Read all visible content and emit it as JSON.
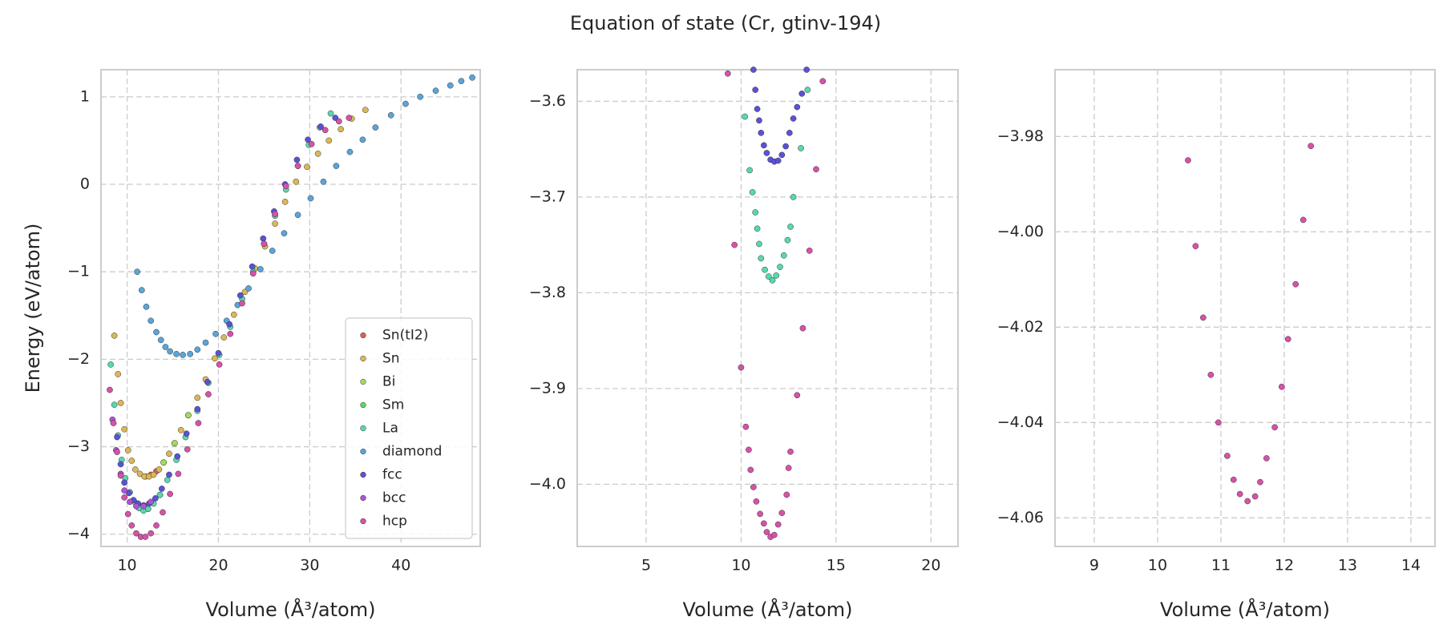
{
  "title": "Equation of state (Cr, gtinv-194)",
  "chart_data": [
    {
      "type": "scatter",
      "xlabel": "Volume (Å³/atom)",
      "ylabel": "Energy (eV/atom)",
      "xlim": [
        7.14,
        48.67
      ],
      "ylim": [
        -4.14,
        1.31
      ],
      "xticks": [
        10,
        20,
        30,
        40
      ],
      "yticks": [
        {
          "value": -4,
          "label": "−4"
        },
        {
          "value": -3,
          "label": "−3"
        },
        {
          "value": -2,
          "label": "−2"
        },
        {
          "value": -1,
          "label": "−1"
        },
        0,
        1
      ],
      "grid": true,
      "legend": "lower right",
      "series": [
        {
          "name": "Sn(tI2)",
          "color": "#db5f57",
          "x": [
            12.0,
            12.6,
            13.2
          ],
          "y": [
            -3.34,
            -3.32,
            -3.28
          ]
        },
        {
          "name": "Sn",
          "color": "#dbb757",
          "x": [
            8.6,
            9.0,
            9.3,
            9.7,
            10.1,
            10.5,
            10.9,
            11.4,
            11.9,
            12.4,
            12.9,
            13.5,
            14.0,
            14.6,
            15.2,
            15.9,
            16.7,
            17.7,
            18.6,
            19.6,
            20.6,
            21.7,
            22.9,
            24.0,
            25.1,
            26.2,
            27.3,
            28.5,
            29.7,
            30.9,
            32.1,
            33.4,
            34.6,
            36.1
          ],
          "y": [
            -1.73,
            -2.17,
            -2.5,
            -2.8,
            -3.04,
            -3.16,
            -3.26,
            -3.31,
            -3.34,
            -3.34,
            -3.32,
            -3.26,
            -3.18,
            -3.08,
            -2.96,
            -2.81,
            -2.64,
            -2.44,
            -2.23,
            -1.99,
            -1.75,
            -1.49,
            -1.23,
            -0.96,
            -0.71,
            -0.45,
            -0.2,
            0.03,
            0.2,
            0.35,
            0.5,
            0.63,
            0.75,
            0.85
          ]
        },
        {
          "name": "Bi",
          "color": "#a5db57",
          "x": [
            14.0,
            15.2,
            16.7
          ],
          "y": [
            -3.18,
            -2.96,
            -2.64
          ]
        },
        {
          "name": "Sm",
          "color": "#57db5f",
          "x": [
            11.3,
            12.3,
            13.6
          ],
          "y": [
            -3.7,
            -3.71,
            -3.55
          ]
        },
        {
          "name": "La",
          "color": "#57d8b0",
          "x": [
            8.2,
            8.6,
            9.0,
            9.4,
            9.8,
            10.3,
            10.8,
            11.3,
            11.8,
            12.3,
            12.9,
            13.6,
            14.4,
            15.4,
            16.4,
            17.7,
            18.9,
            20.1,
            21.3,
            22.6,
            23.8,
            25.0,
            26.2,
            27.4,
            28.7,
            29.9,
            31.1,
            32.3
          ],
          "y": [
            -2.06,
            -2.52,
            -2.87,
            -3.15,
            -3.36,
            -3.52,
            -3.63,
            -3.7,
            -3.73,
            -3.71,
            -3.65,
            -3.55,
            -3.38,
            -3.15,
            -2.89,
            -2.59,
            -2.27,
            -1.95,
            -1.63,
            -1.31,
            -1.0,
            -0.68,
            -0.36,
            -0.06,
            0.21,
            0.45,
            0.65,
            0.81
          ]
        },
        {
          "name": "diamond",
          "color": "#5aa5d8",
          "x": [
            11.1,
            11.6,
            12.1,
            12.6,
            13.2,
            13.7,
            14.2,
            14.7,
            15.4,
            16.1,
            16.9,
            17.7,
            18.6,
            19.7,
            20.9,
            22.1,
            23.3,
            24.6,
            25.9,
            27.2,
            28.7,
            30.1,
            31.5,
            32.9,
            34.4,
            35.8,
            37.2,
            38.9,
            40.5,
            42.1,
            43.8,
            45.4,
            46.6,
            47.8
          ],
          "y": [
            -1.0,
            -1.21,
            -1.4,
            -1.56,
            -1.69,
            -1.78,
            -1.86,
            -1.91,
            -1.94,
            -1.95,
            -1.94,
            -1.89,
            -1.81,
            -1.71,
            -1.56,
            -1.38,
            -1.19,
            -0.97,
            -0.76,
            -0.56,
            -0.35,
            -0.16,
            0.03,
            0.21,
            0.37,
            0.51,
            0.65,
            0.79,
            0.92,
            1.0,
            1.07,
            1.13,
            1.18,
            1.22
          ]
        },
        {
          "name": "fcc",
          "color": "#5a52d6",
          "x": [
            8.9,
            9.3,
            9.7,
            10.2,
            10.7,
            11.2,
            11.8,
            12.4,
            13.1,
            13.8,
            14.6,
            15.5,
            16.5,
            17.7,
            18.8,
            20.0,
            21.2,
            22.4,
            23.7,
            24.9,
            26.1,
            27.3,
            28.6,
            29.8,
            31.2,
            32.8
          ],
          "y": [
            -2.89,
            -3.2,
            -3.41,
            -3.53,
            -3.61,
            -3.65,
            -3.67,
            -3.65,
            -3.59,
            -3.48,
            -3.32,
            -3.11,
            -2.85,
            -2.57,
            -2.26,
            -1.93,
            -1.6,
            -1.27,
            -0.94,
            -0.62,
            -0.31,
            0.0,
            0.28,
            0.51,
            0.66,
            0.76
          ]
        },
        {
          "name": "bcc",
          "color": "#b052d6",
          "x": [
            8.4,
            8.8,
            9.3,
            9.7,
            10.3,
            11.0,
            11.8,
            12.6
          ],
          "y": [
            -2.69,
            -3.04,
            -3.31,
            -3.5,
            -3.63,
            -3.68,
            -3.68,
            -3.63
          ]
        },
        {
          "name": "hcp",
          "color": "#d652a8",
          "x": [
            8.1,
            8.5,
            8.9,
            9.3,
            9.7,
            10.1,
            10.5,
            11.0,
            11.5,
            12.0,
            12.6,
            13.2,
            13.9,
            14.7,
            15.6,
            16.6,
            17.8,
            18.9,
            20.1,
            21.3,
            22.6,
            23.8,
            25.0,
            26.2,
            27.4,
            28.7,
            30.2,
            31.7,
            33.2,
            34.3
          ],
          "y": [
            -2.35,
            -2.73,
            -3.06,
            -3.33,
            -3.58,
            -3.77,
            -3.9,
            -3.99,
            -4.03,
            -4.03,
            -3.99,
            -3.9,
            -3.75,
            -3.54,
            -3.31,
            -3.03,
            -2.73,
            -2.4,
            -2.06,
            -1.71,
            -1.36,
            -1.02,
            -0.68,
            -0.34,
            -0.02,
            0.21,
            0.46,
            0.62,
            0.72,
            0.76
          ]
        }
      ]
    },
    {
      "type": "scatter",
      "xlabel": "Volume (Å³/atom)",
      "xlim": [
        1.37,
        21.42
      ],
      "ylim": [
        -4.065,
        -3.567
      ],
      "xticks": [
        5,
        10,
        15,
        20
      ],
      "yticks": [
        {
          "value": -4.0,
          "label": "−4.0"
        },
        {
          "value": -3.9,
          "label": "−3.9"
        },
        {
          "value": -3.8,
          "label": "−3.8"
        },
        {
          "value": -3.7,
          "label": "−3.7"
        },
        {
          "value": -3.6,
          "label": "−3.6"
        }
      ],
      "grid": true,
      "series": [
        {
          "color": "#d652a8",
          "x": [
            9.3,
            9.65,
            10.0,
            10.25,
            10.4,
            10.5,
            10.65,
            10.8,
            11.0,
            11.2,
            11.35,
            11.55,
            11.75,
            11.95,
            12.15,
            12.4,
            12.5,
            12.6,
            12.95,
            13.25,
            13.6,
            13.95,
            14.3
          ],
          "y": [
            -3.571,
            -3.75,
            -3.878,
            -3.94,
            -3.964,
            -3.985,
            -4.003,
            -4.018,
            -4.031,
            -4.041,
            -4.05,
            -4.055,
            -4.053,
            -4.042,
            -4.03,
            -4.011,
            -3.983,
            -3.966,
            -3.907,
            -3.837,
            -3.756,
            -3.671,
            -3.579
          ]
        },
        {
          "color": "#57d8b0",
          "x": [
            10.2,
            10.45,
            10.6,
            10.75,
            10.85,
            10.95,
            11.05,
            11.25,
            11.45,
            11.65,
            11.85,
            12.05,
            12.25,
            12.45,
            12.6,
            12.75,
            13.15,
            13.5
          ],
          "y": [
            -3.616,
            -3.672,
            -3.695,
            -3.716,
            -3.733,
            -3.749,
            -3.764,
            -3.776,
            -3.783,
            -3.787,
            -3.782,
            -3.773,
            -3.761,
            -3.745,
            -3.731,
            -3.7,
            -3.649,
            -3.588
          ]
        },
        {
          "color": "#5a52d6",
          "x": [
            10.65,
            10.75,
            10.85,
            10.95,
            11.05,
            11.2,
            11.35,
            11.55,
            11.75,
            11.95,
            12.15,
            12.35,
            12.55,
            12.75,
            12.95,
            13.2,
            13.45
          ],
          "y": [
            -3.567,
            -3.588,
            -3.608,
            -3.62,
            -3.633,
            -3.646,
            -3.654,
            -3.661,
            -3.663,
            -3.662,
            -3.656,
            -3.647,
            -3.633,
            -3.618,
            -3.606,
            -3.592,
            -3.567
          ]
        }
      ]
    },
    {
      "type": "scatter",
      "xlabel": "Volume (Å³/atom)",
      "xlim": [
        8.38,
        14.38
      ],
      "ylim": [
        -4.066,
        -3.966
      ],
      "xticks": [
        9,
        10,
        11,
        12,
        13,
        14
      ],
      "yticks": [
        {
          "value": -4.06,
          "label": "−4.06"
        },
        {
          "value": -4.04,
          "label": "−4.04"
        },
        {
          "value": -4.02,
          "label": "−4.02"
        },
        {
          "value": -4.0,
          "label": "−4.00"
        },
        {
          "value": -3.98,
          "label": "−3.98"
        }
      ],
      "grid": true,
      "series": [
        {
          "color": "#d652a8",
          "x": [
            10.48,
            10.6,
            10.72,
            10.84,
            10.96,
            11.1,
            11.2,
            11.3,
            11.42,
            11.54,
            11.62,
            11.72,
            11.85,
            11.96,
            12.06,
            12.18,
            12.3,
            12.42
          ],
          "y": [
            -3.985,
            -4.003,
            -4.018,
            -4.03,
            -4.04,
            -4.047,
            -4.052,
            -4.055,
            -4.0565,
            -4.0555,
            -4.0525,
            -4.0475,
            -4.041,
            -4.0325,
            -4.0225,
            -4.011,
            -3.9975,
            -3.982
          ]
        }
      ]
    }
  ]
}
